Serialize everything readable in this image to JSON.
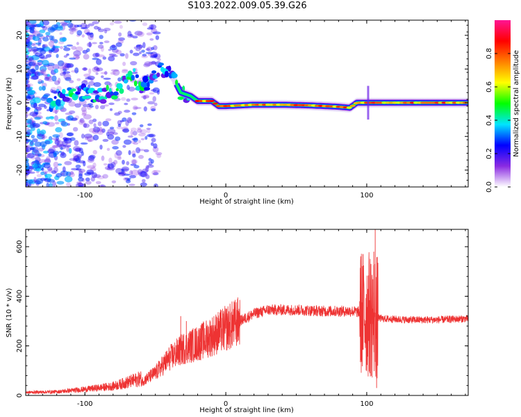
{
  "title": "S103.2022.009.05.39.G26",
  "chart_data": [
    {
      "type": "heatmap",
      "xlabel": "Height of straight line (km)",
      "ylabel": "Frequency (Hz)",
      "xlim": [
        -142,
        172
      ],
      "ylim": [
        -25,
        24.5
      ],
      "x_ticks": [
        -100,
        0,
        100
      ],
      "y_ticks": [
        -20,
        -10,
        0,
        10,
        20
      ],
      "ridge": {
        "description_points": [
          [
            -118,
            2.5
          ],
          [
            -100,
            3
          ],
          [
            -90,
            2
          ],
          [
            -80,
            3
          ],
          [
            -72,
            6
          ],
          [
            -66,
            9
          ],
          [
            -60,
            4
          ],
          [
            -52,
            8
          ],
          [
            -44,
            10
          ],
          [
            -38,
            8
          ],
          [
            -32,
            3
          ],
          [
            -25,
            2
          ],
          [
            -20,
            0.5
          ],
          [
            -10,
            0.5
          ],
          [
            -5,
            -1
          ],
          [
            0,
            -1
          ],
          [
            20,
            -0.6
          ],
          [
            40,
            -0.6
          ],
          [
            60,
            -0.8
          ],
          [
            80,
            -1.2
          ],
          [
            88,
            -1.5
          ],
          [
            93,
            0
          ],
          [
            100,
            0
          ],
          [
            140,
            0
          ],
          [
            172,
            0
          ]
        ]
      },
      "colorbar": {
        "label": "Normalized spectral amplitude",
        "ticks": [
          0.0,
          0.2,
          0.4,
          0.6,
          0.8
        ],
        "range": [
          0,
          1
        ],
        "colors": [
          "#ffffff",
          "#8a2be2",
          "#0000ff",
          "#00e5ff",
          "#00ff00",
          "#ffff00",
          "#ff8000",
          "#ff0000",
          "#ff1493"
        ]
      }
    },
    {
      "type": "line",
      "xlabel": "Height of straight line (km)",
      "ylabel": "SNR (10 * v/v)",
      "xlim": [
        -142,
        172
      ],
      "ylim": [
        0,
        670
      ],
      "x_ticks": [
        -100,
        0,
        100
      ],
      "y_ticks": [
        0,
        200,
        400,
        600
      ],
      "color": "#ee3333",
      "envelope": [
        [
          -142,
          10
        ],
        [
          -120,
          12
        ],
        [
          -100,
          20
        ],
        [
          -80,
          30
        ],
        [
          -60,
          55
        ],
        [
          -50,
          90
        ],
        [
          -40,
          150
        ],
        [
          -30,
          190
        ],
        [
          -20,
          210
        ],
        [
          -10,
          240
        ],
        [
          0,
          270
        ],
        [
          10,
          300
        ],
        [
          20,
          330
        ],
        [
          30,
          345
        ],
        [
          50,
          345
        ],
        [
          70,
          340
        ],
        [
          90,
          340
        ],
        [
          100,
          330
        ],
        [
          104,
          320
        ],
        [
          110,
          310
        ],
        [
          130,
          305
        ],
        [
          150,
          305
        ],
        [
          172,
          310
        ]
      ],
      "spikes": [
        [
          -32,
          320
        ],
        [
          -28,
          300
        ],
        [
          -25,
          250
        ],
        [
          -18,
          270
        ],
        [
          -5,
          310
        ],
        [
          0,
          330
        ],
        [
          8,
          345
        ],
        [
          95,
          380
        ],
        [
          100,
          400
        ],
        [
          103,
          530
        ],
        [
          105,
          580
        ],
        [
          106,
          670
        ],
        [
          107,
          30
        ]
      ]
    }
  ]
}
